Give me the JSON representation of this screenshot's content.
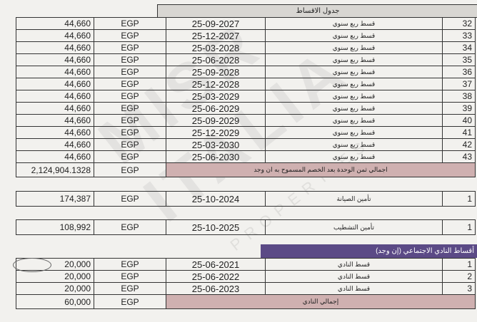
{
  "schedule": {
    "title": "جدول الاقساط",
    "rows": [
      {
        "no": "32",
        "desc": "قسط ربع سنوي",
        "date": "25-09-2027",
        "currency": "EGP",
        "amount": "44,660"
      },
      {
        "no": "33",
        "desc": "قسط ربع سنوي",
        "date": "25-12-2027",
        "currency": "EGP",
        "amount": "44,660"
      },
      {
        "no": "34",
        "desc": "قسط ربع سنوي",
        "date": "25-03-2028",
        "currency": "EGP",
        "amount": "44,660"
      },
      {
        "no": "35",
        "desc": "قسط ربع سنوي",
        "date": "25-06-2028",
        "currency": "EGP",
        "amount": "44,660"
      },
      {
        "no": "36",
        "desc": "قسط ربع سنوي",
        "date": "25-09-2028",
        "currency": "EGP",
        "amount": "44,660"
      },
      {
        "no": "37",
        "desc": "قسط ربع سنوي",
        "date": "25-12-2028",
        "currency": "EGP",
        "amount": "44,660"
      },
      {
        "no": "38",
        "desc": "قسط ربع سنوي",
        "date": "25-03-2029",
        "currency": "EGP",
        "amount": "44,660"
      },
      {
        "no": "39",
        "desc": "قسط ربع سنوي",
        "date": "25-06-2029",
        "currency": "EGP",
        "amount": "44,660"
      },
      {
        "no": "40",
        "desc": "قسط ربع سنوي",
        "date": "25-09-2029",
        "currency": "EGP",
        "amount": "44,660"
      },
      {
        "no": "41",
        "desc": "قسط ربع سنوي",
        "date": "25-12-2029",
        "currency": "EGP",
        "amount": "44,660"
      },
      {
        "no": "42",
        "desc": "قسط ربع سنوي",
        "date": "25-03-2030",
        "currency": "EGP",
        "amount": "44,660"
      },
      {
        "no": "43",
        "desc": "قسط ربع سنوي",
        "date": "25-06-2030",
        "currency": "EGP",
        "amount": "44,660"
      }
    ],
    "total": {
      "label": "اجمالي ثمن الوحدة بعد الخصم المسموح به ان وجد",
      "currency": "EGP",
      "amount": "2,124,904.1328"
    }
  },
  "maintenance": {
    "no": "1",
    "desc": "تأمين الصيانة",
    "date": "25-10-2024",
    "currency": "EGP",
    "amount": "174,387"
  },
  "finishing": {
    "no": "1",
    "desc": "تأمين التشطيب",
    "date": "25-10-2025",
    "currency": "EGP",
    "amount": "108,992"
  },
  "club": {
    "title": "أقساط النادي الاجتماعي (إن وجد)",
    "rows": [
      {
        "no": "1",
        "desc": "قسط النادي",
        "date": "25-06-2021",
        "currency": "EGP",
        "amount": "20,000"
      },
      {
        "no": "2",
        "desc": "قسط النادي",
        "date": "25-06-2022",
        "currency": "EGP",
        "amount": "20,000"
      },
      {
        "no": "3",
        "desc": "قسط النادي",
        "date": "25-06-2023",
        "currency": "EGP",
        "amount": "20,000"
      }
    ],
    "total": {
      "label": "إجمالي النادي",
      "currency": "EGP",
      "amount": "60,000"
    }
  },
  "watermark": "MISR ITALIA PROPERTIES"
}
